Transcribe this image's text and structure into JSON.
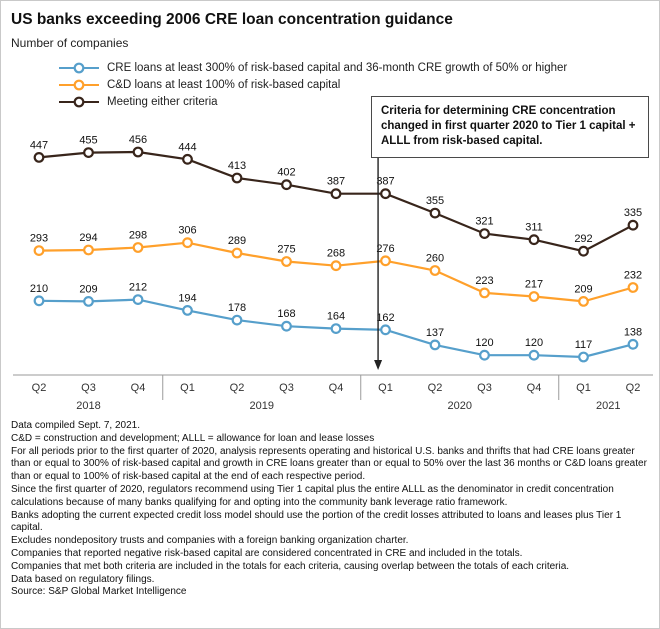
{
  "header": {
    "title": "US banks exceeding 2006 CRE loan concentration guidance",
    "subtitle": "Number of companies"
  },
  "chart_data": {
    "type": "line",
    "title": "US banks exceeding 2006 CRE loan concentration guidance",
    "ylabel": "Number of companies",
    "legend_position": "top-left",
    "grid": false,
    "y_axis_labels_visible": false,
    "data_labels": true,
    "categories": [
      "Q2",
      "Q3",
      "Q4",
      "Q1",
      "Q2",
      "Q3",
      "Q4",
      "Q1",
      "Q2",
      "Q3",
      "Q4",
      "Q1",
      "Q2"
    ],
    "year_groups": [
      {
        "label": "2018",
        "count": 3
      },
      {
        "label": "2019",
        "count": 4
      },
      {
        "label": "2020",
        "count": 4
      },
      {
        "label": "2021",
        "count": 2
      }
    ],
    "series": [
      {
        "name": "CRE loans at least 300% of risk-based capital and 36-month CRE growth of 50% or higher",
        "color": "#569FCB",
        "values": [
          210,
          209,
          212,
          194,
          178,
          168,
          164,
          162,
          137,
          120,
          120,
          117,
          138
        ]
      },
      {
        "name": "C&D loans at least 100% of risk-based capital",
        "color": "#FFA02B",
        "values": [
          293,
          294,
          298,
          306,
          289,
          275,
          268,
          276,
          260,
          223,
          217,
          209,
          232
        ]
      },
      {
        "name": "Meeting either criteria",
        "color": "#38251B",
        "values": [
          447,
          455,
          456,
          444,
          413,
          402,
          387,
          387,
          355,
          321,
          311,
          292,
          335
        ]
      }
    ],
    "annotation": "Criteria for determining CRE concentration changed in first quarter 2020 to Tier 1 capital + ALLL from risk-based capital."
  },
  "notes": [
    "Data compiled Sept. 7, 2021.",
    "C&D = construction and development; ALLL = allowance for loan and lease losses",
    "For all periods prior to the first quarter of 2020, analysis represents operating and historical U.S. banks and thrifts that had CRE loans greater than or equal to 300% of risk-based capital and growth in CRE loans greater than or equal to 50% over the last 36 months or C&D loans greater than or equal to 100% of risk-based capital at the end of each respective period.",
    "Since the first quarter of 2020, regulators recommend using Tier 1 capital plus the entire ALLL as the denominator in credit concentration calculations because of many banks qualifying for and opting into the community bank leverage ratio framework.",
    "Banks adopting the current expected credit loss model should use the portion of the credit losses attributed to loans and leases plus Tier 1 capital.",
    "Excludes nondepository trusts and companies with a foreign banking organization charter.",
    "Companies that reported negative risk-based capital are considered concentrated in CRE and included in the totals.",
    "Companies that met both criteria are included in the totals for each criteria, causing overlap between the totals of each criteria.",
    "Data based on regulatory filings.",
    "Source: S&P Global Market Intelligence"
  ]
}
